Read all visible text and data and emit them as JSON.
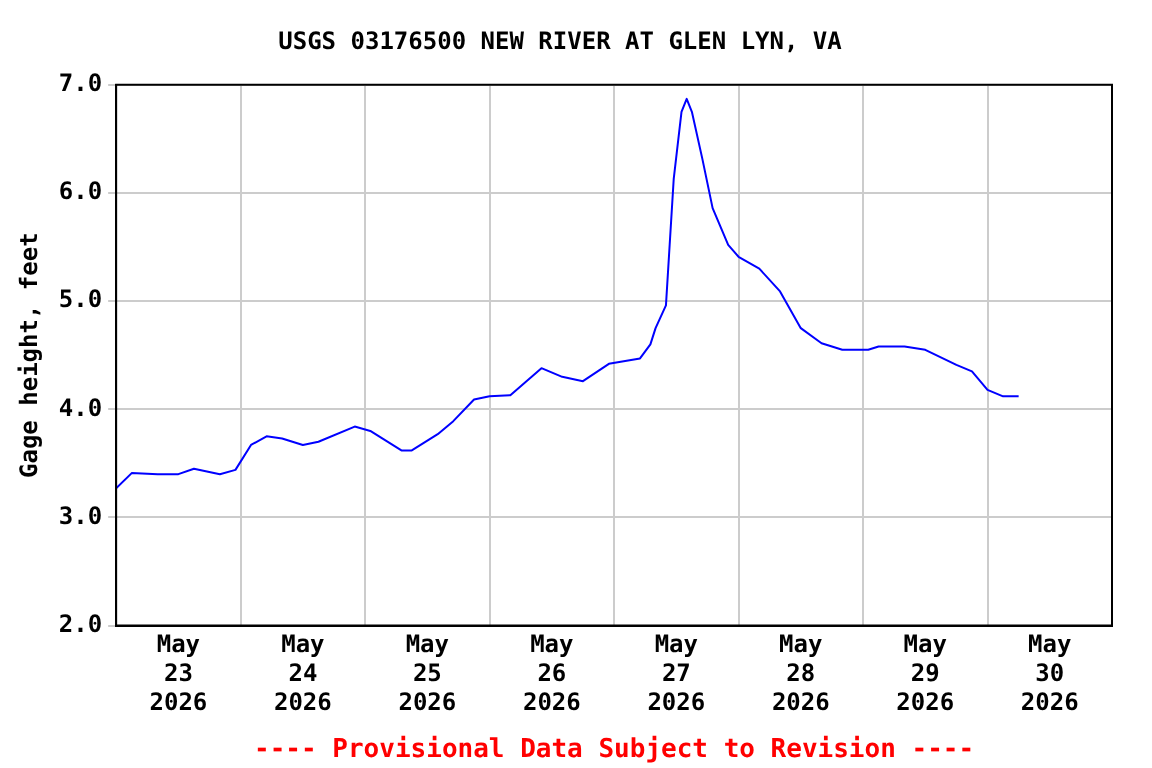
{
  "chart_data": {
    "type": "line",
    "title": "USGS 03176500 NEW RIVER AT GLEN LYN, VA",
    "ylabel": "Gage height, feet",
    "annotations": [
      "---- Provisional Data Subject to Revision ----"
    ],
    "x": [
      "2026-05-23T00:00",
      "2026-05-23T03:00",
      "2026-05-23T08:00",
      "2026-05-23T12:00",
      "2026-05-23T15:00",
      "2026-05-23T20:00",
      "2026-05-23T23:00",
      "2026-05-24T02:00",
      "2026-05-24T05:00",
      "2026-05-24T08:00",
      "2026-05-24T12:00",
      "2026-05-24T15:00",
      "2026-05-24T22:00",
      "2026-05-25T01:00",
      "2026-05-25T07:00",
      "2026-05-25T09:00",
      "2026-05-25T14:00",
      "2026-05-25T17:00",
      "2026-05-25T21:00",
      "2026-05-26T00:00",
      "2026-05-26T04:00",
      "2026-05-26T10:00",
      "2026-05-26T14:00",
      "2026-05-26T18:00",
      "2026-05-26T23:00",
      "2026-05-27T05:00",
      "2026-05-27T07:00",
      "2026-05-27T08:00",
      "2026-05-27T10:00",
      "2026-05-27T11:30",
      "2026-05-27T13:00",
      "2026-05-27T14:00",
      "2026-05-27T15:00",
      "2026-05-27T17:00",
      "2026-05-27T19:00",
      "2026-05-27T22:00",
      "2026-05-28T00:00",
      "2026-05-28T04:00",
      "2026-05-28T08:00",
      "2026-05-28T12:00",
      "2026-05-28T16:00",
      "2026-05-28T20:00",
      "2026-05-29T01:00",
      "2026-05-29T03:00",
      "2026-05-29T08:00",
      "2026-05-29T12:00",
      "2026-05-29T18:00",
      "2026-05-29T21:00",
      "2026-05-30T00:00",
      "2026-05-30T03:00",
      "2026-05-30T06:00"
    ],
    "series": [
      {
        "color": "#0000ff",
        "values": [
          3.27,
          3.41,
          3.4,
          3.4,
          3.45,
          3.4,
          3.44,
          3.67,
          3.75,
          3.73,
          3.67,
          3.7,
          3.84,
          3.8,
          3.62,
          3.62,
          3.77,
          3.89,
          4.09,
          4.12,
          4.13,
          4.38,
          4.3,
          4.26,
          4.42,
          4.47,
          4.6,
          4.75,
          4.96,
          6.13,
          6.75,
          6.87,
          6.75,
          6.32,
          5.86,
          5.52,
          5.41,
          5.3,
          5.09,
          4.75,
          4.61,
          4.55,
          4.55,
          4.58,
          4.58,
          4.55,
          4.41,
          4.35,
          4.18,
          4.12,
          4.12
        ]
      }
    ],
    "xlim": [
      "2026-05-23T00:00",
      "2026-05-31T00:00"
    ],
    "xticks": [
      {
        "value": "2026-05-23T12:00",
        "label": "May 23 2026"
      },
      {
        "value": "2026-05-24T12:00",
        "label": "May 24 2026"
      },
      {
        "value": "2026-05-25T12:00",
        "label": "May 25 2026"
      },
      {
        "value": "2026-05-26T12:00",
        "label": "May 26 2026"
      },
      {
        "value": "2026-05-27T12:00",
        "label": "May 27 2026"
      },
      {
        "value": "2026-05-28T12:00",
        "label": "May 28 2026"
      },
      {
        "value": "2026-05-29T12:00",
        "label": "May 29 2026"
      },
      {
        "value": "2026-05-30T12:00",
        "label": "May 30 2026"
      },
      {
        "value": "2026-05-24T00:00",
        "label": null
      },
      {
        "value": "2026-05-25T00:00",
        "label": null
      },
      {
        "value": "2026-05-26T00:00",
        "label": null
      },
      {
        "value": "2026-05-27T00:00",
        "label": null
      },
      {
        "value": "2026-05-28T00:00",
        "label": null
      },
      {
        "value": "2026-05-29T00:00",
        "label": null
      },
      {
        "value": "2026-05-30T00:00",
        "label": null
      }
    ],
    "ylim": [
      2,
      7
    ],
    "yticks": [
      {
        "value": 2,
        "label": "2.0"
      },
      {
        "value": 3,
        "label": "3.0"
      },
      {
        "value": 4,
        "label": "4.0"
      },
      {
        "value": 5,
        "label": "5.0"
      },
      {
        "value": 6,
        "label": "6.0"
      },
      {
        "value": 7,
        "label": "7.0"
      }
    ],
    "grid": true,
    "legend": false,
    "marker": "none",
    "line_style": "solid"
  }
}
